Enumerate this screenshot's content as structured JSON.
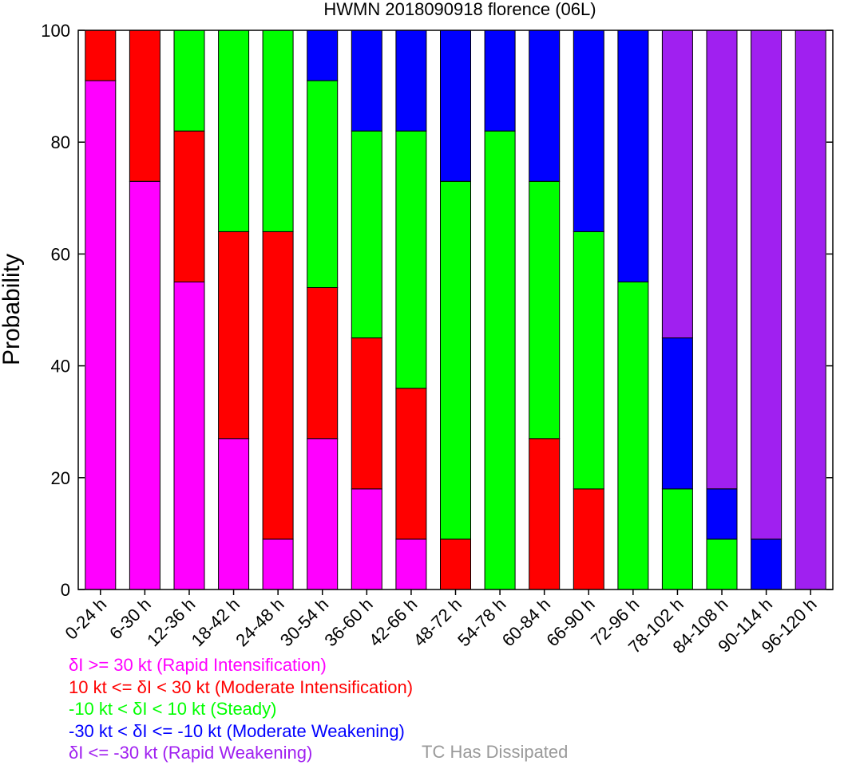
{
  "chart_data": {
    "type": "bar",
    "stacked": true,
    "title": "HWMN 2018090918 florence (06L)",
    "ylabel": "Probability",
    "xlabel": "",
    "ylim": [
      0,
      100
    ],
    "yticks": [
      0,
      20,
      40,
      60,
      80,
      100
    ],
    "categories": [
      "0-24 h",
      "6-30 h",
      "12-36 h",
      "18-42 h",
      "24-48 h",
      "30-54 h",
      "36-60 h",
      "42-66 h",
      "48-72 h",
      "54-78 h",
      "60-84 h",
      "66-90 h",
      "72-96 h",
      "78-102 h",
      "84-108 h",
      "90-114 h",
      "96-120 h"
    ],
    "series": [
      {
        "key": "ri",
        "color": "#ff00ff",
        "values": [
          91,
          73,
          55,
          27,
          9,
          27,
          18,
          9,
          0,
          0,
          0,
          0,
          0,
          0,
          0,
          0,
          0
        ]
      },
      {
        "key": "mi",
        "color": "#ff0000",
        "values": [
          9,
          27,
          27,
          37,
          55,
          27,
          27,
          27,
          9,
          0,
          27,
          18,
          0,
          0,
          0,
          0,
          0
        ]
      },
      {
        "key": "st",
        "color": "#00ff00",
        "values": [
          0,
          0,
          18,
          36,
          36,
          37,
          37,
          46,
          64,
          82,
          46,
          46,
          55,
          18,
          9,
          0,
          0
        ]
      },
      {
        "key": "mw",
        "color": "#0000ff",
        "values": [
          0,
          0,
          0,
          0,
          0,
          9,
          18,
          18,
          27,
          18,
          27,
          36,
          45,
          27,
          9,
          9,
          0
        ]
      },
      {
        "key": "rw",
        "color": "#a020f0",
        "values": [
          0,
          0,
          0,
          0,
          0,
          0,
          0,
          0,
          0,
          0,
          0,
          0,
          0,
          55,
          82,
          91,
          100
        ]
      }
    ],
    "grid": false,
    "legend": [
      {
        "text": "δI >= 30 kt (Rapid Intensification)",
        "color": "#ff00ff"
      },
      {
        "text": "10 kt <= δI < 30 kt (Moderate Intensification)",
        "color": "#ff0000"
      },
      {
        "text": "-10 kt < δI < 10 kt (Steady)",
        "color": "#00ff00"
      },
      {
        "text": "-30 kt < δI <= -10 kt (Moderate Weakening)",
        "color": "#0000ff"
      },
      {
        "text": "δI <= -30 kt (Rapid Weakening)",
        "color": "#a020f0"
      }
    ],
    "dissipated_label": "TC Has Dissipated",
    "dissipated_color": "#9a9a9a"
  }
}
